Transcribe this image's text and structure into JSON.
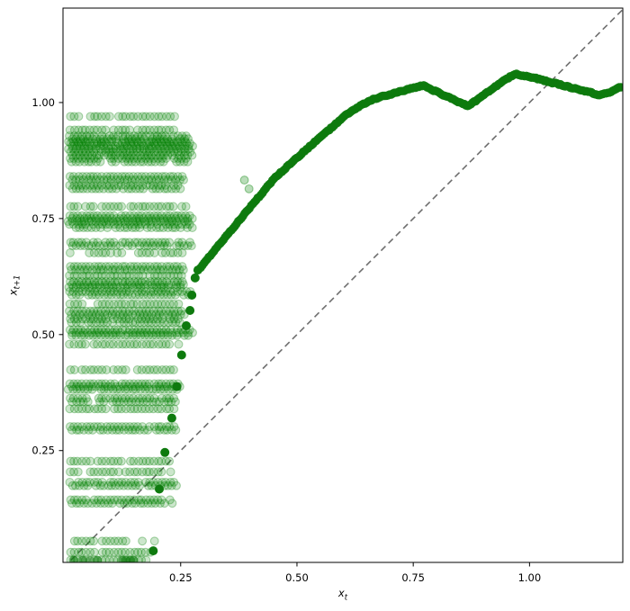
{
  "chart_data": {
    "type": "scatter",
    "title": "",
    "xlabel_base": "x",
    "xlabel_sub": "t",
    "ylabel_base": "x",
    "ylabel_sub": "t+1",
    "x_ticks": [
      0.25,
      0.5,
      0.75,
      1.0
    ],
    "y_ticks": [
      0.25,
      0.5,
      0.75,
      1.0
    ],
    "x_tick_labels": [
      "0.25",
      "0.50",
      "0.75",
      "1.00"
    ],
    "y_tick_labels": [
      "0.25",
      "0.50",
      "0.75",
      "1.00"
    ],
    "xlim": [
      -0.003,
      1.2005
    ],
    "ylim": [
      0.009,
      1.2035
    ],
    "grid": false,
    "legend": null,
    "colors": {
      "point_green": "#008000",
      "curve_green": "#0e7a0e",
      "identity_line": "#6e6e6e",
      "axis": "#000000"
    },
    "identity_line": {
      "type": "y=x",
      "style": "dashed"
    },
    "curve_anchors": [
      [
        0.293,
        0.645
      ],
      [
        0.32,
        0.678
      ],
      [
        0.35,
        0.714
      ],
      [
        0.38,
        0.751
      ],
      [
        0.41,
        0.787
      ],
      [
        0.43,
        0.811
      ],
      [
        0.452,
        0.837
      ],
      [
        0.49,
        0.872
      ],
      [
        0.529,
        0.907
      ],
      [
        0.57,
        0.942
      ],
      [
        0.607,
        0.975
      ],
      [
        0.63,
        0.989
      ],
      [
        0.655,
        1.004
      ],
      [
        0.68,
        1.012
      ],
      [
        0.713,
        1.021
      ],
      [
        0.74,
        1.029
      ],
      [
        0.771,
        1.037
      ],
      [
        0.82,
        1.014
      ],
      [
        0.868,
        0.992
      ],
      [
        0.92,
        1.03
      ],
      [
        0.968,
        1.062
      ],
      [
        1.01,
        1.053
      ],
      [
        1.048,
        1.043
      ],
      [
        1.095,
        1.031
      ],
      [
        1.13,
        1.022
      ],
      [
        1.152,
        1.016
      ],
      [
        1.177,
        1.024
      ],
      [
        1.196,
        1.034
      ]
    ],
    "lower_branch_points": [
      [
        0.191,
        0.034
      ],
      [
        0.204,
        0.167
      ],
      [
        0.216,
        0.246
      ],
      [
        0.231,
        0.32
      ],
      [
        0.242,
        0.388
      ],
      [
        0.252,
        0.456
      ],
      [
        0.262,
        0.519
      ],
      [
        0.27,
        0.552
      ],
      [
        0.274,
        0.585
      ],
      [
        0.281,
        0.622
      ],
      [
        0.287,
        0.639
      ]
    ],
    "bottom_dark_points": [
      [
        0.021,
        0.014
      ],
      [
        0.04,
        0.014
      ],
      [
        0.055,
        0.014
      ],
      [
        0.071,
        0.014
      ],
      [
        0.125,
        0.014
      ],
      [
        0.133,
        0.014
      ],
      [
        0.141,
        0.014
      ],
      [
        0.149,
        0.014
      ]
    ],
    "outlier_points": [
      [
        0.387,
        0.833
      ],
      [
        0.397,
        0.814
      ]
    ],
    "bands": [
      {
        "y": 0.97,
        "x0": 0.012,
        "x1": 0.262,
        "d": 1,
        "gaps": [
          [
            0.035,
            0.048
          ],
          [
            0.1,
            0.112
          ],
          [
            0.238,
            0.256
          ]
        ]
      },
      {
        "y": 0.941,
        "x0": 0.012,
        "x1": 0.255,
        "d": 1,
        "gaps": [
          [
            0.093,
            0.104
          ],
          [
            0.236,
            0.243
          ]
        ]
      },
      {
        "y": 0.922,
        "x0": 0.012,
        "x1": 0.268,
        "d": 3,
        "gaps": []
      },
      {
        "y": 0.906,
        "x0": 0.012,
        "x1": 0.272,
        "d": 3,
        "gaps": []
      },
      {
        "y": 0.89,
        "x0": 0.012,
        "x1": 0.274,
        "d": 2,
        "gaps": []
      },
      {
        "y": 0.876,
        "x0": 0.012,
        "x1": 0.262,
        "d": 2,
        "gaps": [
          [
            0.076,
            0.09
          ]
        ]
      },
      {
        "y": 0.837,
        "x0": 0.012,
        "x1": 0.258,
        "d": 2,
        "gaps": []
      },
      {
        "y": 0.818,
        "x0": 0.012,
        "x1": 0.252,
        "d": 2,
        "gaps": []
      },
      {
        "y": 0.776,
        "x0": 0.012,
        "x1": 0.262,
        "d": 1,
        "gaps": [
          [
            0.03,
            0.042
          ],
          [
            0.064,
            0.076
          ],
          [
            0.128,
            0.14
          ],
          [
            0.24,
            0.25
          ]
        ]
      },
      {
        "y": 0.75,
        "x0": 0.012,
        "x1": 0.277,
        "d": 3,
        "gaps": []
      },
      {
        "y": 0.734,
        "x0": 0.012,
        "x1": 0.27,
        "d": 2,
        "gaps": []
      },
      {
        "y": 0.695,
        "x0": 0.012,
        "x1": 0.272,
        "d": 2,
        "gaps": []
      },
      {
        "y": 0.676,
        "x0": 0.012,
        "x1": 0.255,
        "d": 1,
        "gaps": [
          [
            0.028,
            0.052
          ],
          [
            0.1,
            0.112
          ]
        ]
      },
      {
        "y": 0.643,
        "x0": 0.012,
        "x1": 0.258,
        "d": 2,
        "gaps": []
      },
      {
        "y": 0.627,
        "x0": 0.012,
        "x1": 0.268,
        "d": 1,
        "gaps": []
      },
      {
        "y": 0.608,
        "x0": 0.012,
        "x1": 0.255,
        "d": 3,
        "gaps": []
      },
      {
        "y": 0.589,
        "x0": 0.012,
        "x1": 0.27,
        "d": 2,
        "gaps": []
      },
      {
        "y": 0.566,
        "x0": 0.012,
        "x1": 0.252,
        "d": 1,
        "gaps": [
          [
            0.045,
            0.068
          ]
        ]
      },
      {
        "y": 0.547,
        "x0": 0.012,
        "x1": 0.258,
        "d": 2,
        "gaps": []
      },
      {
        "y": 0.53,
        "x0": 0.012,
        "x1": 0.247,
        "d": 2,
        "gaps": []
      },
      {
        "y": 0.504,
        "x0": 0.012,
        "x1": 0.27,
        "d": 3,
        "gaps": []
      },
      {
        "y": 0.479,
        "x0": 0.012,
        "x1": 0.252,
        "d": 1,
        "gaps": [
          [
            0.048,
            0.06
          ]
        ]
      },
      {
        "y": 0.424,
        "x0": 0.012,
        "x1": 0.238,
        "d": 1,
        "gaps": [
          [
            0.024,
            0.034
          ],
          [
            0.138,
            0.15
          ]
        ]
      },
      {
        "y": 0.388,
        "x0": 0.012,
        "x1": 0.252,
        "d": 3,
        "gaps": []
      },
      {
        "y": 0.359,
        "x0": 0.012,
        "x1": 0.244,
        "d": 2,
        "gaps": [
          [
            0.054,
            0.066
          ]
        ]
      },
      {
        "y": 0.34,
        "x0": 0.012,
        "x1": 0.238,
        "d": 1,
        "gaps": []
      },
      {
        "y": 0.298,
        "x0": 0.012,
        "x1": 0.242,
        "d": 2,
        "gaps": []
      },
      {
        "y": 0.227,
        "x0": 0.012,
        "x1": 0.228,
        "d": 1,
        "gaps": [
          [
            0.058,
            0.07
          ],
          [
            0.124,
            0.138
          ]
        ]
      },
      {
        "y": 0.204,
        "x0": 0.012,
        "x1": 0.228,
        "d": 1,
        "gaps": [
          [
            0.035,
            0.048
          ],
          [
            0.118,
            0.13
          ]
        ]
      },
      {
        "y": 0.178,
        "x0": 0.012,
        "x1": 0.238,
        "d": 2,
        "gaps": []
      },
      {
        "y": 0.14,
        "x0": 0.012,
        "x1": 0.228,
        "d": 2,
        "gaps": []
      },
      {
        "y": 0.055,
        "x0": 0.012,
        "x1": 0.195,
        "d": 1,
        "gaps": [
          [
            0.14,
            0.162
          ],
          [
            0.172,
            0.186
          ]
        ]
      },
      {
        "y": 0.031,
        "x0": 0.012,
        "x1": 0.184,
        "d": 1,
        "gaps": []
      },
      {
        "y": 0.014,
        "x0": 0.012,
        "x1": 0.178,
        "d": 1,
        "gaps": []
      }
    ]
  }
}
